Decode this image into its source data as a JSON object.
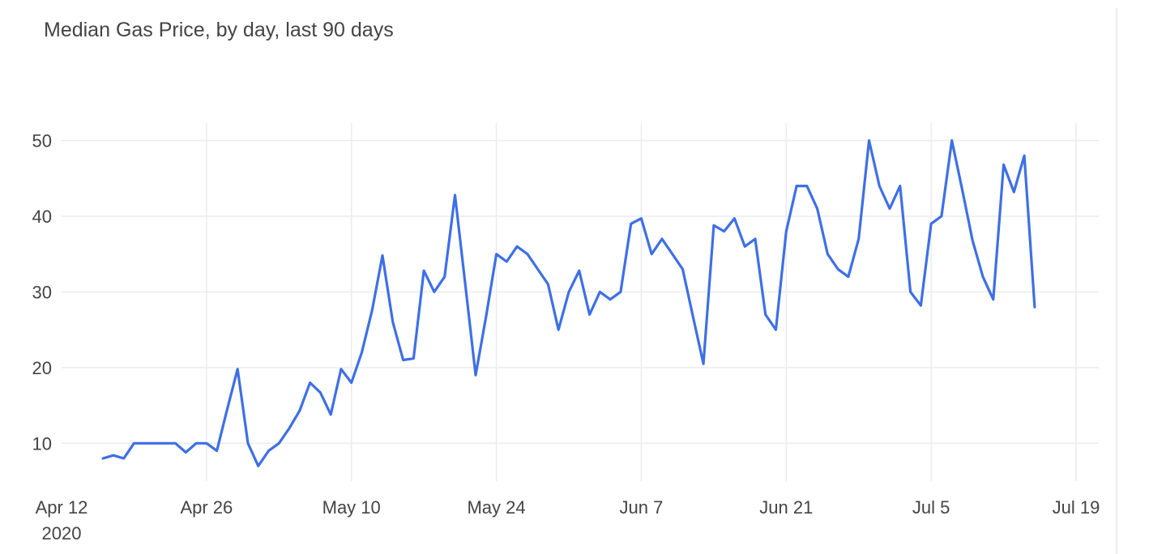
{
  "chart_data": {
    "type": "line",
    "title": "Median Gas Price, by day, last 90 days",
    "xlabel": "",
    "ylabel": "",
    "x_start": "2020-04-16",
    "x_ticks": [
      {
        "date": "2020-04-12",
        "label": "Apr 12",
        "sublabel": "2020"
      },
      {
        "date": "2020-04-26",
        "label": "Apr 26",
        "sublabel": ""
      },
      {
        "date": "2020-05-10",
        "label": "May 10",
        "sublabel": ""
      },
      {
        "date": "2020-05-24",
        "label": "May 24",
        "sublabel": ""
      },
      {
        "date": "2020-06-07",
        "label": "Jun 7",
        "sublabel": ""
      },
      {
        "date": "2020-06-21",
        "label": "Jun 21",
        "sublabel": ""
      },
      {
        "date": "2020-07-05",
        "label": "Jul 5",
        "sublabel": ""
      },
      {
        "date": "2020-07-19",
        "label": "Jul 19",
        "sublabel": ""
      }
    ],
    "y_ticks": [
      10,
      20,
      30,
      40,
      50
    ],
    "xlim": [
      "2020-04-12",
      "2020-07-19"
    ],
    "ylim": [
      5,
      52.3
    ],
    "grid": true,
    "legend": "none",
    "series": [
      {
        "color": "#3e6fe6",
        "values": [
          8,
          8.4,
          8,
          10,
          10,
          10,
          10,
          10,
          8.8,
          10,
          10,
          9,
          14.5,
          19.8,
          10,
          7,
          9,
          10,
          12,
          14.3,
          18,
          16.7,
          13.8,
          19.8,
          18,
          22,
          27.6,
          34.8,
          26,
          21,
          21.2,
          32.8,
          30,
          32,
          42.8,
          31,
          19,
          26.7,
          35,
          34,
          36,
          35,
          33,
          31,
          25,
          30,
          32.8,
          27,
          30,
          29,
          30,
          39,
          39.7,
          35,
          37,
          35,
          33,
          26.7,
          20.5,
          38.8,
          38,
          39.7,
          36,
          37,
          27,
          25,
          38,
          44,
          44,
          41,
          35,
          33,
          32,
          37,
          50,
          44,
          41,
          44,
          30,
          28.2,
          39,
          40,
          50,
          43.5,
          36.8,
          32,
          29,
          46.8,
          43.2,
          48,
          28
        ]
      }
    ]
  }
}
